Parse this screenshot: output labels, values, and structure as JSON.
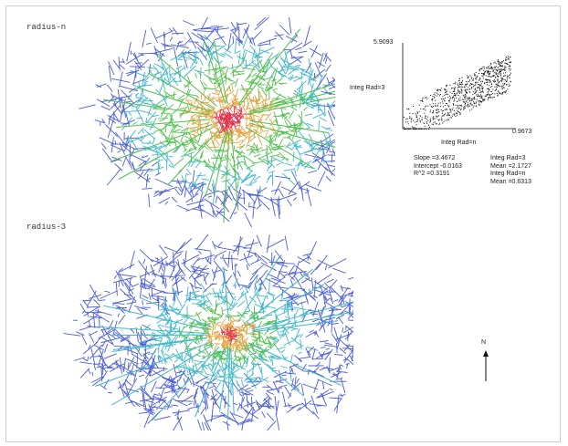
{
  "maps": [
    {
      "title": "radius-n",
      "highlight": "strong"
    },
    {
      "title": "radius-3",
      "highlight": "weak"
    }
  ],
  "scatter": {
    "y_label": "Integ Rad=3",
    "x_label": "Integ Rad=n",
    "y_max_label": "5.9093",
    "x_max_label": "0.9673"
  },
  "stats_left": [
    "Slope =3.4672",
    "Intercept -0.0163",
    "R^2 =0.3191"
  ],
  "stats_right": [
    "Integ Rad=3",
    "Mean =2.1727",
    "Integ Rad=n",
    "Mean =0.6313"
  ],
  "north_label": "N",
  "colors": {
    "low": "#4a5bd6",
    "mid_low": "#3fb8c8",
    "mid": "#4fc04a",
    "high": "#e6a23c",
    "peak": "#e0304a"
  }
}
